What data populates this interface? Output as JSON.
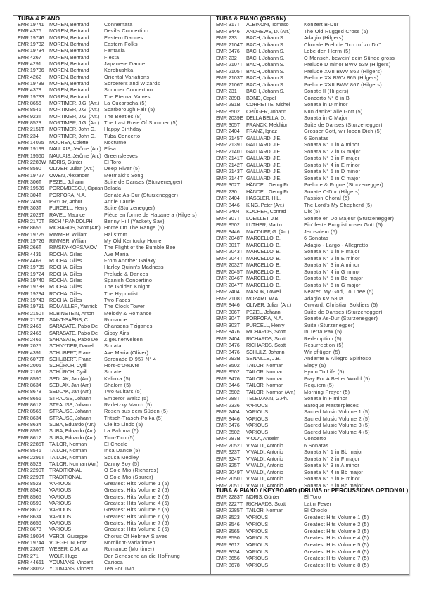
{
  "left": {
    "heading": "TUBA & PIANO",
    "rows": [
      [
        "EMR 19741",
        "MOREN, Bertrand",
        "Connemara"
      ],
      [
        "EMR 4376",
        "MOREN, Bertrand",
        "Devil's Concertino"
      ],
      [
        "EMR 19746",
        "MOREN, Bertrand",
        "Eastern Dances"
      ],
      [
        "EMR 19732",
        "MOREN, Bertrand",
        "Eastern Folks"
      ],
      [
        "EMR 19734",
        "MOREN, Bertrand",
        "Fantasia"
      ],
      [
        "EMR 4267",
        "MOREN, Bertrand",
        "Fiesta"
      ],
      [
        "EMR 4291",
        "MOREN, Bertrand",
        "Japanese Dance"
      ],
      [
        "EMR 19736",
        "MOREN, Bertrand",
        "Korobushka"
      ],
      [
        "EMR 4262",
        "MOREN, Bertrand",
        "Oriental Variations"
      ],
      [
        "EMR 19739",
        "MOREN, Bertrand",
        "Sorcerers and Wizards"
      ],
      [
        "EMR 4378",
        "MOREN, Bertrand",
        "Summer Concertino"
      ],
      [
        "EMR 19733",
        "MOREN, Bertrand",
        "The Eternal Valves"
      ],
      [
        "EMR 8656",
        "MORTIMER, J.G. (Arr.)",
        "La Cucaracha (5)"
      ],
      [
        "EMR 8546",
        "MORTIMER, J.G. (Arr.)",
        "Scarborough Fair (5)"
      ],
      [
        "EMR 923T",
        "MORTIMER, J.G. (Arr.)",
        "The Beatles (8)"
      ],
      [
        "EMR 8523",
        "MORTIMER, J.G. (Arr.)",
        "The Last Rose Of Summer (5)"
      ],
      [
        "EMR 2151T",
        "MORTIMER, John G.",
        "Happy Birthday"
      ],
      [
        "EMR 234",
        "MORTIMER, John G.",
        "Tuba Concerto"
      ],
      [
        "EMR 14025",
        "MOUREY, Colette",
        "Nocturne"
      ],
      [
        "EMR 19199",
        "NAULAIS, Jérôme (Arr.)",
        "Elisa"
      ],
      [
        "EMR 19560",
        "NAULAIS, Jérôme (Arr.)",
        "Greensleeves"
      ],
      [
        "EMR 2283W",
        "NORIS, Günter",
        "El Toro"
      ],
      [
        "EMR 8590",
        "OLIVER, Julian (Arr.)",
        "Deep River (5)"
      ],
      [
        "EMR 19727",
        "OWEN, Alexander",
        "Mermaid's Song"
      ],
      [
        "EMR 306T",
        "PEZEL, Johann",
        "Suite de Danses (Sturzenegger)"
      ],
      [
        "EMR 19586",
        "POROMBESCU, Ciprian",
        "Balada"
      ],
      [
        "EMR 304T",
        "PORPORA, N.A.",
        "Sonate As-Dur (Sturzenegger)"
      ],
      [
        "EMR 2494",
        "PRYOR, Arthur",
        "Annie Laurie"
      ],
      [
        "EMR 303T",
        "PURCELL, Henry",
        "Suite (Sturzenegger)"
      ],
      [
        "EMR 2029T",
        "RAVEL, Maurice",
        "Pièce en forme de Habanera (Hilgers)"
      ],
      [
        "EMR 2170T",
        "RICH / RANDOLPH",
        "Benny Hill (Yackety Sax)"
      ],
      [
        "EMR 8656",
        "RICHARDS, Scott (Arr.)",
        "Home On The Range (5)"
      ],
      [
        "EMR 19725",
        "RIMMER, William",
        "Hailstrom"
      ],
      [
        "EMR 19726",
        "RIMMER, William",
        "My Old Kentucky Home"
      ],
      [
        "EMR 266T",
        "RIMSKY-KORSAKOV",
        "The Flight of the Bumble Bee"
      ],
      [
        "EMR 4431",
        "ROCHA, Gilles",
        "Ave Maria"
      ],
      [
        "EMR 4469",
        "ROCHA, Gilles",
        "From Another Galaxy"
      ],
      [
        "EMR 19735",
        "ROCHA, Gilles",
        "Harley Quinn's Madness"
      ],
      [
        "EMR 19724",
        "ROCHA, Gilles",
        "Prelude & Dances"
      ],
      [
        "EMR 19740",
        "ROCHA, Gilles",
        "Spanish Concertino"
      ],
      [
        "EMR 19738",
        "ROCHA, Gilles",
        "The Golden Knight"
      ],
      [
        "EMR 19234",
        "ROCHA, Gilles",
        "The Hypnotist"
      ],
      [
        "EMR 19743",
        "ROCHA, Gilles",
        "Two Faces"
      ],
      [
        "EMR 19731",
        "ROMAILLER, Yannick",
        "The Clock Tower"
      ],
      [
        "EMR 2150T",
        "RUBINSTEIN, Anton",
        "Melody & Romance"
      ],
      [
        "EMR 2174T",
        "SAINT-SAËNS, C.",
        "Romance"
      ],
      [
        "EMR 2466",
        "SARASATE, Pablo De",
        "Chansons Tziganes"
      ],
      [
        "EMR 2466",
        "SARASATE, Pablo De",
        "Gipsy Airs"
      ],
      [
        "EMR 2466",
        "SARASATE, Pablo De",
        "Zigeunerweisen"
      ],
      [
        "EMR 2025",
        "SCHNYDER, Daniel",
        "Sonata"
      ],
      [
        "EMR 4391",
        "SCHUBERT, Franz",
        "Ave Maria (Oliver)"
      ],
      [
        "EMR 6073T",
        "SCHUBERT, Franz",
        "Serenade D 957 N° 4"
      ],
      [
        "EMR 2005",
        "SCHÜRCH, Cyrill",
        "Hors-d'Oeuvre"
      ],
      [
        "EMR 2109",
        "SCHÜRCH, Cyrill",
        "Sonate"
      ],
      [
        "EMR 8590",
        "SEDLAK, Jan (Arr.)",
        "Kalinka (5)"
      ],
      [
        "EMR 8634",
        "SEDLAK, Jan (Arr.)",
        "Shalom (5)"
      ],
      [
        "EMR 8678",
        "SEDLAK, Jan (Arr.)",
        "Two Guitars (5)"
      ],
      [
        "EMR 8656",
        "STRAUSS, Johann",
        "Emperor Waltz (5)"
      ],
      [
        "EMR 8612",
        "STRAUSS, Johann",
        "Radetzky March (5)"
      ],
      [
        "EMR 8565",
        "STRAUSS, Johann",
        "Rosen aus dem Süden (5)"
      ],
      [
        "EMR 8634",
        "STRAUSS, Johann",
        "Tritsch-Trasch-Polka (5)"
      ],
      [
        "EMR 8634",
        "SUBA, Eduardo (Arr.)",
        "Cielito Lindo (5)"
      ],
      [
        "EMR 8590",
        "SUBA, Eduardo (Arr.)",
        "La Paloma (5)"
      ],
      [
        "EMR 8612",
        "SUBA, Eduardo (Arr.)",
        "Tico-Tico (5)"
      ],
      [
        "EMR 2285T",
        "TAILOR, Norman",
        "El Choclo"
      ],
      [
        "EMR 8546",
        "TAILOR, Norman",
        "Inca Dance (5)"
      ],
      [
        "EMR 2291T",
        "TAILOR, Norman",
        "Sousa Medley"
      ],
      [
        "EMR 8523",
        "TAILOR, Norman (Arr.)",
        "Danny Boy (5)"
      ],
      [
        "EMR 2290T",
        "TRADITIONAL",
        "O Sole Mio (Richards)"
      ],
      [
        "EMR 2293T",
        "TRADITIONAL",
        "O Sole Mio (Saurer)"
      ],
      [
        "EMR 8523",
        "VARIOUS",
        "Greatest Hits Volume 1 (5)"
      ],
      [
        "EMR 8546",
        "VARIOUS",
        "Greatest Hits Volume 2 (5)"
      ],
      [
        "EMR 8565",
        "VARIOUS",
        "Greatest Hits Volume 3 (5)"
      ],
      [
        "EMR 8590",
        "VARIOUS",
        "Greatest Hits Volume 4 (5)"
      ],
      [
        "EMR 8612",
        "VARIOUS",
        "Greatest Hits Volume 5 (5)"
      ],
      [
        "EMR 8634",
        "VARIOUS",
        "Greatest Hits Volume 6 (5)"
      ],
      [
        "EMR 8656",
        "VARIOUS",
        "Greatest Hits Volume 7 (5)"
      ],
      [
        "EMR 8678",
        "VARIOUS",
        "Greatest Hits Volume 8 (5)"
      ],
      [
        "EMR 19024",
        "VERDI, Giuseppe",
        "Chorus Of Hebrew Slaves"
      ],
      [
        "EMR 19744",
        "VOEGELIN, Fritz",
        "Nordlicht-Variationen"
      ],
      [
        "EMR 2305T",
        "WEBER, C.M. von",
        "Romance (Mortimer)"
      ],
      [
        "EMR 271",
        "WOLF, Hugo",
        "Der Genesene an die Hoffnung"
      ],
      [
        "EMR 44661",
        "YOUMANS, Vincent",
        "Carioca"
      ],
      [
        "EMR 38052",
        "YOUMANS, Vincent",
        "Tea For Two"
      ]
    ]
  },
  "right": {
    "heading": "TUBA & PIANO (ORGAN)",
    "rows": [
      [
        "EMR 317T",
        "ALBINONI, Tomaso",
        "Konzert B-Dur"
      ],
      [
        "EMR 8446",
        "ANDREWS, D. (Arr.)",
        "The Old Rugged Cross (5)"
      ],
      [
        "EMR 233",
        "BACH, Johann S.",
        "Adagio (Hilgers)"
      ],
      [
        "EMR 2104T",
        "BACH, Johann S.",
        "Chorale Prelude \"Ich ruf zu Dir\""
      ],
      [
        "EMR 8476",
        "BACH, Johann S.",
        "Lobe den Herrn (5)"
      ],
      [
        "EMR 232",
        "BACH, Johann S.",
        "O Mensch, bewein' dein Sünde gross"
      ],
      [
        "EMR 2107T",
        "BACH, Johann S.",
        "Prelude D minor BWV 539 (Hilgers)"
      ],
      [
        "EMR 2105T",
        "BACH, Johann S.",
        "Prelude XVII BWV 862 (Hilgers)"
      ],
      [
        "EMR 2103T",
        "BACH, Johann S.",
        "Prelude XX BWV 865 (Hilgers)"
      ],
      [
        "EMR 2106T",
        "BACH, Johann S.",
        "Prelude XXII BWV 867 (Hilgers)"
      ],
      [
        "EMR 231",
        "BACH, Johann S.",
        "Sonate II (Hilgers)"
      ],
      [
        "EMR 289B",
        "BOND, Capel",
        "Concerto N° 6 in B"
      ],
      [
        "EMR 291B",
        "CORRETTE, Michel",
        "Sonata in D minor"
      ],
      [
        "EMR 8502",
        "CRÜGER, Johann",
        "Nun danket alle Gott (5)"
      ],
      [
        "EMR 2039E",
        "DELLA BELLA, D.",
        "Sonata in C Major"
      ],
      [
        "EMR 305T",
        "FRANCK, Melchior",
        "Suite de Danses (Sturzenegger)"
      ],
      [
        "EMR 2404",
        "FRANZ, Ignaz",
        "Grosser Gott, wir loben Dich (5)"
      ],
      [
        "EMR 2145T",
        "GALLIARD, J.E.",
        "6 Sonatas"
      ],
      [
        "EMR 2139T",
        "GALLIARD, J.E.",
        "Sonata N° 1 in A minor"
      ],
      [
        "EMR 2140T",
        "GALLIARD, J.E.",
        "Sonata N° 2 in G major"
      ],
      [
        "EMR 2141T",
        "GALLIARD, J.E.",
        "Sonata N° 3 in F major"
      ],
      [
        "EMR 2142T",
        "GALLIARD, J.E.",
        "Sonata N° 4 in E minor"
      ],
      [
        "EMR 2143T",
        "GALLIARD, J.E.",
        "Sonata N° 5 in D minor"
      ],
      [
        "EMR 2144T",
        "GALLIARD, J.E.",
        "Sonata N° 6 in C major"
      ],
      [
        "EMR 302T",
        "HÄNDEL, Georg Fr.",
        "Prelude & Fugue (Sturzenegger)"
      ],
      [
        "EMR 230",
        "HÄNDEL, Georg Fr.",
        "Sonate C-Dur (Hilgers)"
      ],
      [
        "EMR 2404",
        "HASSLER, H.L.",
        "Passion Choral (5)"
      ],
      [
        "EMR 8446",
        "KING, Peter (Arr.)",
        "The Lord's My Shepherd (5)"
      ],
      [
        "EMR 2404",
        "KOCHER, Conrad",
        "Dix (5)"
      ],
      [
        "EMR 307T",
        "LOEILLET, J.B.",
        "Sonate en Do Majeur (Sturzenegger)"
      ],
      [
        "EMR 8502",
        "LUTHER, Martin",
        "Ein' feste Burg ist unser Gott (5)"
      ],
      [
        "EMR 8446",
        "MACDUFF, G. (Arr.)",
        "Jerusalem (5)"
      ],
      [
        "EMR 2048T",
        "MARCELLO, B.",
        "6 Sonatas"
      ],
      [
        "EMR 301T",
        "MARCELLO, B.",
        "Adagio - Largo - Allegretto"
      ],
      [
        "EMR 2043T",
        "MARCELLO, B.",
        "Sonata N° 1 in F major"
      ],
      [
        "EMR 2044T",
        "MARCELLO, B.",
        "Sonata N° 2 in E minor"
      ],
      [
        "EMR 2032T",
        "MARCELLO, B.",
        "Sonata N° 3 in A minor"
      ],
      [
        "EMR 2045T",
        "MARCELLO, B.",
        "Sonata N° 4 in G minor"
      ],
      [
        "EMR 2046T",
        "MARCELLO, B.",
        "Sonata N° 5 in Bb major"
      ],
      [
        "EMR 2047T",
        "MARCELLO, B.",
        "Sonata N° 6 in G major"
      ],
      [
        "EMR 2404",
        "MASON, Lowell",
        "Nearer, My God, To Thee (5)"
      ],
      [
        "EMR 2108T",
        "MOZART, W.A.",
        "Adagio KV 580a"
      ],
      [
        "EMR 8446",
        "OLIVER, Julian (Arr.)",
        "Onward, Christian Soldiers (5)"
      ],
      [
        "EMR 306T",
        "PEZEL, Johann",
        "Suite de Danses (Sturzenegger)"
      ],
      [
        "EMR 304T",
        "PORPORA, N.A.",
        "Sonate As-Dur (Sturzenegger)"
      ],
      [
        "EMR 303T",
        "PURCELL, Henry",
        "Suite (Sturzenegger)"
      ],
      [
        "EMR 8476",
        "RICHARDS, Scott",
        "In Terra Pax (5)"
      ],
      [
        "EMR 2404",
        "RICHARDS, Scott",
        "Redemption (5)"
      ],
      [
        "EMR 8476",
        "RICHARDS, Scott",
        "Resurrection (5)"
      ],
      [
        "EMR 8476",
        "SCHULZ, Johann",
        "Wir pflügen (5)"
      ],
      [
        "EMR 293B",
        "SENAILLE, J.B.",
        "Andante & Allegro Spiritoso"
      ],
      [
        "EMR 8502",
        "TAILOR, Norman",
        "Elegy (5)"
      ],
      [
        "EMR 8502",
        "TAILOR, Norman",
        "Hymn To Life (5)"
      ],
      [
        "EMR 8476",
        "TAILOR, Norman",
        "Pray For A Better World (5)"
      ],
      [
        "EMR 8446",
        "TAILOR, Norman",
        "Requiem (5)"
      ],
      [
        "EMR 8502",
        "TAILOR, Norman (Arr.)",
        "Morning Prayer (5)"
      ],
      [
        "EMR 288T",
        "TELEMANN, G.Ph.",
        "Sonata in F minor"
      ],
      [
        "EMR 2336",
        "VARIOUS",
        "Baroque Masterpieces"
      ],
      [
        "EMR 2404",
        "VARIOUS",
        "Sacred Music Volume 1 (5)"
      ],
      [
        "EMR 8446",
        "VARIOUS",
        "Sacred Music Volume 2 (5)"
      ],
      [
        "EMR 8476",
        "VARIOUS",
        "Sacred Music Volume 3 (5)"
      ],
      [
        "EMR 8502",
        "VARIOUS",
        "Sacred Music Volume 4 (5)"
      ],
      [
        "EMR 287B",
        "VIOLA, Anselm",
        "Concerto"
      ],
      [
        "EMR 2052T",
        "VIVALDI, Antonio",
        "6 Sonatas"
      ],
      [
        "EMR 323T",
        "VIVALDI, Antonio",
        "Sonata N° 1 in Bb major"
      ],
      [
        "EMR 324T",
        "VIVALDI, Antonio",
        "Sonata N° 2 in F major"
      ],
      [
        "EMR 325T",
        "VIVALDI, Antonio",
        "Sonata N° 3 in A minor"
      ],
      [
        "EMR 2049T",
        "VIVALDI, Antonio",
        "Sonata N° 4 in Bb major"
      ],
      [
        "EMR 2050T",
        "VIVALDI, Antonio",
        "Sonata N° 5 in E minor"
      ],
      [
        "EMR 2051T",
        "VIVALDI, Antonio",
        "Sonata N° 6 in Bb major"
      ]
    ]
  },
  "right2": {
    "heading": "TUBA & PIANO / KEYBOARD (DRUMS or PERCUSSIONS OPTIONAL)",
    "rows": [
      [
        "EMR 2283T",
        "NORIS, Günter",
        "El Toro"
      ],
      [
        "EMR 2227T",
        "RICHARDS, Scott",
        "Latin Fever"
      ],
      [
        "EMR 2285T",
        "TAILOR, Norman",
        "El Choclo"
      ],
      [
        "EMR 8523",
        "VARIOUS",
        "Greatest Hits Volume 1 (5)"
      ],
      [
        "EMR 8546",
        "VARIOUS",
        "Greatest Hits Volume 2 (5)"
      ],
      [
        "EMR 8565",
        "VARIOUS",
        "Greatest Hits Volume 3 (5)"
      ],
      [
        "EMR 8590",
        "VARIOUS",
        "Greatest Hits Volume 4 (5)"
      ],
      [
        "EMR 8612",
        "VARIOUS",
        "Greatest Hits Volume 5 (5)"
      ],
      [
        "EMR 8634",
        "VARIOUS",
        "Greatest Hits Volume 6 (5)"
      ],
      [
        "EMR 8656",
        "VARIOUS",
        "Greatest Hits Volume 7 (5)"
      ],
      [
        "EMR 8678",
        "VARIOUS",
        "Greatest Hits Volume 8 (5)"
      ]
    ]
  }
}
